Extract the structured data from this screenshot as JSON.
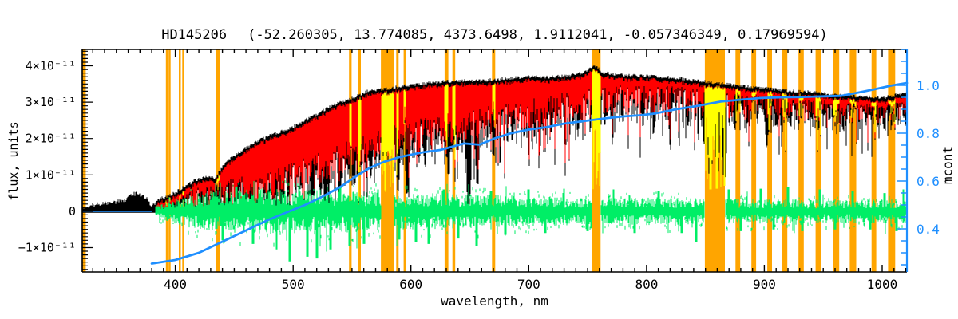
{
  "chart_data": {
    "type": "line",
    "title": {
      "star": "HD145206",
      "params": "(-52.260305, 13.774085, 4373.6498, 1.9112041, -0.057346349, 0.17969594)"
    },
    "xlabel": "wavelength, nm",
    "ylabel_left": "flux, units",
    "ylabel_right": "mcont",
    "x_axis": {
      "range_nm": [
        321,
        1021
      ],
      "major_ticks": [
        400,
        500,
        600,
        700,
        800,
        900,
        1000
      ],
      "minor_step": 10
    },
    "flux_axis": {
      "units_scale": "1e-11",
      "range_1e11": [
        -1.67,
        4.45
      ],
      "major_ticks_1e11": [
        -1,
        0,
        1,
        2,
        3,
        4
      ],
      "labels": [
        "−1×10⁻¹¹",
        "0",
        "1×10⁻¹¹",
        "2×10⁻¹¹",
        "3×10⁻¹¹",
        "4×10⁻¹¹"
      ],
      "minor_step_1e11": 0.1
    },
    "mcont_axis": {
      "range": [
        0.22,
        1.15
      ],
      "major_ticks": [
        0.4,
        0.6,
        0.8,
        1.0
      ],
      "labels": [
        "0.4",
        "0.6",
        "0.8",
        "1.0"
      ],
      "minor_step": 0.05
    },
    "colors": {
      "observed": "#000000",
      "model": "#ff0000",
      "masked_spectrum": "#ffff00",
      "residual": "#00ee66",
      "mcont": "#1f8fff",
      "masked_band": "#ffa500",
      "frame": "#000000",
      "background": "#ffffff"
    },
    "masked_bands_nm": [
      [
        321,
        324
      ],
      [
        392,
        393.5
      ],
      [
        394.3,
        396
      ],
      [
        403,
        404.7
      ],
      [
        405.9,
        407.6
      ],
      [
        434.5,
        437.9
      ],
      [
        547.5,
        549.7
      ],
      [
        555,
        557.5
      ],
      [
        574.5,
        585.5
      ],
      [
        587.5,
        589.5
      ],
      [
        593.8,
        595.8
      ],
      [
        628.6,
        631.8
      ],
      [
        635.2,
        637.6
      ],
      [
        668.8,
        671.5
      ],
      [
        754,
        761
      ],
      [
        849.5,
        866.5
      ],
      [
        875.5,
        879.5
      ],
      [
        889,
        893
      ],
      [
        902.5,
        906.5
      ],
      [
        915,
        919.5
      ],
      [
        929,
        933.5
      ],
      [
        943.5,
        948
      ],
      [
        958.5,
        963.5
      ],
      [
        972.5,
        978
      ],
      [
        991,
        995
      ],
      [
        1005,
        1011
      ]
    ],
    "wide_masked_bands_nm": [
      [
        574.5,
        585.5
      ],
      [
        754,
        761
      ],
      [
        849.5,
        866.5
      ]
    ],
    "series": {
      "observed_top_envelope_1e11": [
        [
          321,
          0.1
        ],
        [
          328,
          0.16
        ],
        [
          335,
          0.2
        ],
        [
          342,
          0.22
        ],
        [
          350,
          0.26
        ],
        [
          357,
          0.3
        ],
        [
          363,
          0.46
        ],
        [
          368,
          0.5
        ],
        [
          372,
          0.44
        ],
        [
          376,
          0.34
        ],
        [
          379,
          0.14
        ],
        [
          382,
          0.18
        ],
        [
          385,
          0.3
        ],
        [
          390,
          0.38
        ],
        [
          395,
          0.44
        ],
        [
          400,
          0.52
        ],
        [
          406,
          0.64
        ],
        [
          412,
          0.76
        ],
        [
          418,
          0.86
        ],
        [
          424,
          0.92
        ],
        [
          430,
          0.96
        ],
        [
          434,
          0.92
        ],
        [
          439,
          1.18
        ],
        [
          445,
          1.4
        ],
        [
          452,
          1.56
        ],
        [
          460,
          1.74
        ],
        [
          470,
          1.93
        ],
        [
          480,
          2.08
        ],
        [
          490,
          2.2
        ],
        [
          500,
          2.33
        ],
        [
          510,
          2.5
        ],
        [
          520,
          2.66
        ],
        [
          530,
          2.86
        ],
        [
          541,
          3.0
        ],
        [
          551,
          3.12
        ],
        [
          563,
          3.3
        ],
        [
          572,
          3.33
        ],
        [
          581,
          3.38
        ],
        [
          591,
          3.43
        ],
        [
          601,
          3.48
        ],
        [
          613,
          3.52
        ],
        [
          626,
          3.56
        ],
        [
          640,
          3.6
        ],
        [
          654,
          3.58
        ],
        [
          669,
          3.62
        ],
        [
          684,
          3.66
        ],
        [
          699,
          3.7
        ],
        [
          714,
          3.68
        ],
        [
          729,
          3.72
        ],
        [
          744,
          3.8
        ],
        [
          757,
          4.0
        ],
        [
          763,
          3.82
        ],
        [
          776,
          3.75
        ],
        [
          790,
          3.73
        ],
        [
          806,
          3.71
        ],
        [
          821,
          3.68
        ],
        [
          836,
          3.62
        ],
        [
          848,
          3.58
        ],
        [
          858,
          3.52
        ],
        [
          867,
          3.5
        ],
        [
          880,
          3.45
        ],
        [
          895,
          3.4
        ],
        [
          910,
          3.35
        ],
        [
          925,
          3.3
        ],
        [
          940,
          3.28
        ],
        [
          955,
          3.22
        ],
        [
          970,
          3.18
        ],
        [
          985,
          3.15
        ],
        [
          1000,
          3.12
        ],
        [
          1010,
          3.18
        ],
        [
          1021,
          3.28
        ]
      ],
      "model_start_nm": 383,
      "model_top_offset_1e11": 0.08,
      "model_bottom_envelope_1e11": [
        [
          383,
          0.05
        ],
        [
          400,
          0.1
        ],
        [
          420,
          0.16
        ],
        [
          440,
          0.3
        ],
        [
          460,
          0.45
        ],
        [
          480,
          0.62
        ],
        [
          500,
          0.82
        ],
        [
          520,
          1.05
        ],
        [
          540,
          1.3
        ],
        [
          563,
          1.55
        ],
        [
          580,
          1.85
        ],
        [
          600,
          2.0
        ],
        [
          620,
          2.1
        ],
        [
          640,
          2.2
        ],
        [
          660,
          2.32
        ],
        [
          680,
          2.42
        ],
        [
          700,
          2.55
        ],
        [
          720,
          2.66
        ],
        [
          740,
          2.76
        ],
        [
          760,
          2.86
        ],
        [
          780,
          2.92
        ],
        [
          800,
          2.96
        ],
        [
          820,
          2.96
        ],
        [
          840,
          2.92
        ],
        [
          860,
          2.86
        ],
        [
          880,
          2.9
        ],
        [
          900,
          2.86
        ],
        [
          920,
          2.82
        ],
        [
          940,
          2.8
        ],
        [
          960,
          2.76
        ],
        [
          980,
          2.76
        ],
        [
          1000,
          2.76
        ],
        [
          1021,
          2.8
        ]
      ],
      "deep_absorption_lines_1e11": [
        [
          397,
          0.03
        ],
        [
          403,
          0.06
        ],
        [
          410.2,
          0.07
        ],
        [
          422,
          0.15
        ],
        [
          434,
          0.12
        ],
        [
          445,
          0.25
        ],
        [
          458,
          0.3
        ],
        [
          470,
          0.35
        ],
        [
          486.1,
          0.05
        ],
        [
          496,
          0.4
        ],
        [
          517,
          0.4
        ],
        [
          527,
          0.35
        ],
        [
          540,
          0.6
        ],
        [
          552,
          0.7
        ],
        [
          566,
          0.9
        ],
        [
          578,
          1.1
        ],
        [
          589,
          0.55
        ],
        [
          597,
          0.45
        ],
        [
          612,
          1.2
        ],
        [
          632,
          1.0
        ],
        [
          649,
          -0.15
        ],
        [
          656.3,
          0.72
        ],
        [
          670,
          1.5
        ],
        [
          686,
          1.9
        ],
        [
          705,
          2.0
        ],
        [
          719,
          2.1
        ],
        [
          742,
          2.2
        ],
        [
          760,
          1.6
        ],
        [
          780,
          2.4
        ],
        [
          797,
          2.3
        ],
        [
          820,
          2.35
        ],
        [
          835,
          2.3
        ],
        [
          849,
          1.85
        ],
        [
          854.2,
          0.6
        ],
        [
          860,
          0.62
        ],
        [
          866.2,
          0.7
        ],
        [
          875,
          2.2
        ],
        [
          886,
          2.4
        ],
        [
          902,
          1.75
        ],
        [
          910,
          2.3
        ],
        [
          922,
          2.35
        ],
        [
          940,
          2.5
        ],
        [
          955,
          2.45
        ],
        [
          980,
          2.55
        ],
        [
          1000,
          2.6
        ],
        [
          1014,
          2.7
        ]
      ],
      "residual_center_1e11": 0,
      "residual_amplitude_1e11": [
        [
          383,
          0.12
        ],
        [
          400,
          0.3
        ],
        [
          420,
          0.42
        ],
        [
          450,
          0.5
        ],
        [
          480,
          0.52
        ],
        [
          520,
          0.5
        ],
        [
          560,
          0.46
        ],
        [
          600,
          0.42
        ],
        [
          650,
          0.4
        ],
        [
          700,
          0.35
        ],
        [
          750,
          0.3
        ],
        [
          800,
          0.32
        ],
        [
          850,
          0.3
        ],
        [
          900,
          0.28
        ],
        [
          950,
          0.26
        ],
        [
          1021,
          0.28
        ]
      ],
      "residual_spikes_1e11": [
        [
          440,
          -0.8
        ],
        [
          452,
          0.68
        ],
        [
          466,
          -0.9
        ],
        [
          486,
          -1.05
        ],
        [
          497,
          -1.38
        ],
        [
          505,
          0.7
        ],
        [
          512,
          -1.25
        ],
        [
          520,
          -1.3
        ],
        [
          532,
          -1.05
        ],
        [
          540,
          0.66
        ],
        [
          548,
          -0.95
        ],
        [
          560,
          -0.9
        ],
        [
          572,
          0.6
        ],
        [
          590,
          -0.78
        ],
        [
          604,
          -0.85
        ],
        [
          615,
          -0.9
        ],
        [
          628,
          0.6
        ],
        [
          640,
          -0.75
        ],
        [
          656,
          -0.95
        ],
        [
          668,
          0.55
        ],
        [
          680,
          -0.65
        ],
        [
          700,
          0.6
        ],
        [
          714,
          -0.6
        ],
        [
          730,
          0.62
        ],
        [
          750,
          -0.55
        ],
        [
          772,
          0.6
        ],
        [
          790,
          -0.6
        ],
        [
          810,
          0.55
        ],
        [
          830,
          -0.6
        ],
        [
          842,
          -0.85
        ],
        [
          870,
          0.6
        ],
        [
          880,
          -0.55
        ],
        [
          897,
          0.62
        ],
        [
          908,
          -0.5
        ],
        [
          920,
          0.66
        ],
        [
          932,
          -0.55
        ],
        [
          947,
          0.6
        ],
        [
          960,
          -0.5
        ],
        [
          975,
          0.55
        ],
        [
          990,
          -0.5
        ],
        [
          1002,
          0.5
        ],
        [
          1012,
          -0.55
        ],
        [
          1018,
          0.6
        ]
      ],
      "mcont_flat_segment": {
        "x_nm": [
          321.5,
          380
        ],
        "flux_1e11": 0
      },
      "mcont_curve": [
        [
          380,
          0.255
        ],
        [
          400,
          0.27
        ],
        [
          420,
          0.3
        ],
        [
          435,
          0.335
        ],
        [
          450,
          0.37
        ],
        [
          465,
          0.405
        ],
        [
          480,
          0.44
        ],
        [
          495,
          0.47
        ],
        [
          510,
          0.5
        ],
        [
          525,
          0.535
        ],
        [
          540,
          0.575
        ],
        [
          555,
          0.625
        ],
        [
          565,
          0.655
        ],
        [
          577,
          0.68
        ],
        [
          590,
          0.7
        ],
        [
          610,
          0.72
        ],
        [
          625,
          0.73
        ],
        [
          645,
          0.757
        ],
        [
          658,
          0.752
        ],
        [
          672,
          0.78
        ],
        [
          685,
          0.8
        ],
        [
          700,
          0.815
        ],
        [
          715,
          0.825
        ],
        [
          730,
          0.84
        ],
        [
          746,
          0.85
        ],
        [
          765,
          0.862
        ],
        [
          780,
          0.87
        ],
        [
          795,
          0.875
        ],
        [
          807,
          0.882
        ],
        [
          825,
          0.9
        ],
        [
          841,
          0.912
        ],
        [
          855,
          0.925
        ],
        [
          863,
          0.932
        ],
        [
          880,
          0.94
        ],
        [
          897,
          0.947
        ],
        [
          915,
          0.95
        ],
        [
          930,
          0.951
        ],
        [
          950,
          0.954
        ],
        [
          965,
          0.956
        ],
        [
          980,
          0.97
        ],
        [
          995,
          0.985
        ],
        [
          1008,
          0.999
        ],
        [
          1015,
          1.005
        ],
        [
          1021,
          1.01
        ]
      ]
    }
  }
}
